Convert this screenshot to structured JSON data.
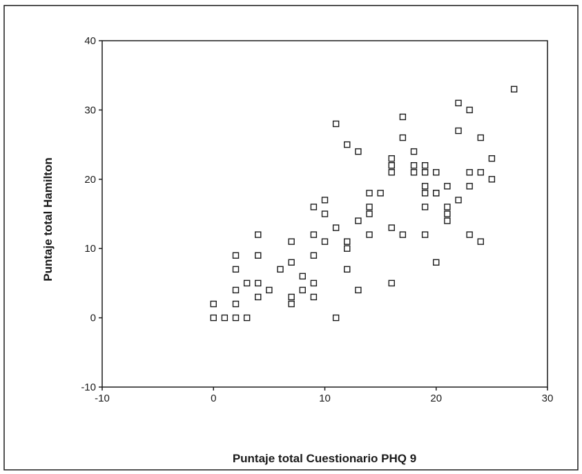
{
  "chart_data": {
    "type": "scatter",
    "title": "",
    "xlabel": "Puntaje total Cuestionario PHQ 9",
    "ylabel": "Puntaje total Hamilton",
    "xlim": [
      -10,
      30
    ],
    "ylim": [
      -10,
      40
    ],
    "xticks": [
      -10,
      0,
      10,
      20,
      30
    ],
    "yticks": [
      -10,
      0,
      10,
      20,
      30,
      40
    ],
    "grid": false,
    "legend": "none",
    "marker": "hollow-square",
    "marker_color": "#1a1a1a",
    "points": [
      [
        0,
        2
      ],
      [
        0,
        0
      ],
      [
        1,
        0
      ],
      [
        2,
        0
      ],
      [
        3,
        0
      ],
      [
        2,
        9
      ],
      [
        2,
        7
      ],
      [
        2,
        4
      ],
      [
        2,
        2
      ],
      [
        3,
        5
      ],
      [
        4,
        12
      ],
      [
        4,
        9
      ],
      [
        4,
        5
      ],
      [
        4,
        3
      ],
      [
        5,
        4
      ],
      [
        6,
        7
      ],
      [
        7,
        11
      ],
      [
        7,
        8
      ],
      [
        7,
        3
      ],
      [
        7,
        2
      ],
      [
        8,
        6
      ],
      [
        8,
        4
      ],
      [
        9,
        16
      ],
      [
        9,
        12
      ],
      [
        9,
        9
      ],
      [
        9,
        5
      ],
      [
        9,
        3
      ],
      [
        10,
        17
      ],
      [
        10,
        15
      ],
      [
        10,
        11
      ],
      [
        11,
        28
      ],
      [
        11,
        13
      ],
      [
        11,
        0
      ],
      [
        12,
        25
      ],
      [
        12,
        11
      ],
      [
        12,
        10
      ],
      [
        12,
        7
      ],
      [
        13,
        24
      ],
      [
        13,
        14
      ],
      [
        13,
        4
      ],
      [
        14,
        18
      ],
      [
        14,
        16
      ],
      [
        14,
        15
      ],
      [
        14,
        12
      ],
      [
        15,
        18
      ],
      [
        16,
        23
      ],
      [
        16,
        22
      ],
      [
        16,
        22
      ],
      [
        16,
        21
      ],
      [
        16,
        13
      ],
      [
        16,
        5
      ],
      [
        17,
        29
      ],
      [
        17,
        26
      ],
      [
        17,
        12
      ],
      [
        18,
        24
      ],
      [
        18,
        22
      ],
      [
        18,
        21
      ],
      [
        19,
        22
      ],
      [
        19,
        21
      ],
      [
        19,
        19
      ],
      [
        19,
        18
      ],
      [
        19,
        16
      ],
      [
        19,
        12
      ],
      [
        20,
        21
      ],
      [
        20,
        18
      ],
      [
        20,
        18
      ],
      [
        20,
        8
      ],
      [
        21,
        19
      ],
      [
        21,
        16
      ],
      [
        21,
        15
      ],
      [
        21,
        14
      ],
      [
        22,
        31
      ],
      [
        22,
        27
      ],
      [
        22,
        17
      ],
      [
        23,
        30
      ],
      [
        23,
        21
      ],
      [
        23,
        19
      ],
      [
        23,
        12
      ],
      [
        24,
        26
      ],
      [
        24,
        21
      ],
      [
        24,
        11
      ],
      [
        25,
        23
      ],
      [
        25,
        20
      ],
      [
        27,
        33
      ]
    ]
  }
}
